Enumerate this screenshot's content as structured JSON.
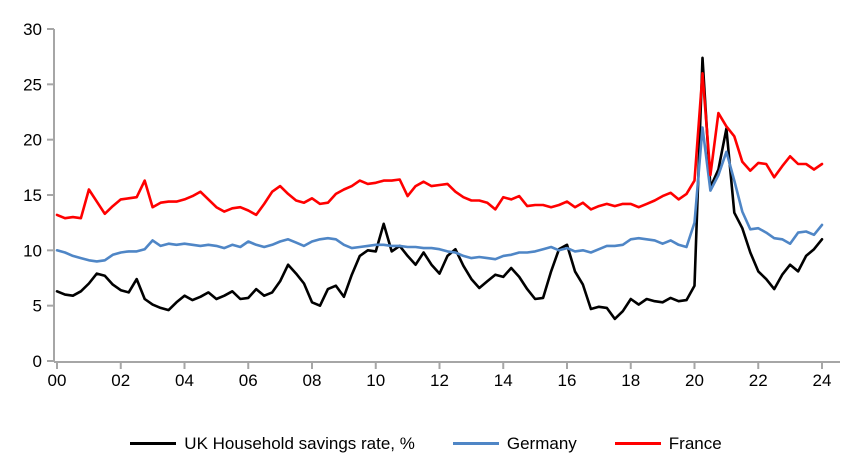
{
  "chart_data": {
    "type": "line",
    "title": "",
    "x_tick_labels": [
      "00",
      "02",
      "04",
      "06",
      "08",
      "10",
      "12",
      "14",
      "16",
      "18",
      "20",
      "22",
      "24"
    ],
    "x_start_year": 2000,
    "points_per_year": 4,
    "y_ticks": [
      0,
      5,
      10,
      15,
      20,
      25,
      30
    ],
    "ylim": [
      0,
      30
    ],
    "grid": false,
    "legend_position": "bottom",
    "axis_color": "#a6a6a6",
    "text_color": "#000000",
    "series": [
      {
        "name": "UK Household savings rate, %",
        "color": "#000000",
        "values": [
          6.3,
          6.0,
          5.9,
          6.3,
          7.0,
          7.9,
          7.7,
          6.9,
          6.4,
          6.2,
          7.4,
          5.6,
          5.1,
          4.8,
          4.6,
          5.3,
          5.9,
          5.5,
          5.8,
          6.2,
          5.6,
          5.9,
          6.3,
          5.6,
          5.7,
          6.5,
          5.9,
          6.2,
          7.2,
          8.7,
          7.9,
          7.0,
          5.3,
          5.0,
          6.5,
          6.8,
          5.8,
          7.8,
          9.5,
          10.0,
          9.9,
          12.4,
          9.9,
          10.4,
          9.5,
          8.7,
          9.8,
          8.7,
          7.9,
          9.5,
          10.1,
          8.6,
          7.4,
          6.6,
          7.2,
          7.8,
          7.6,
          8.4,
          7.6,
          6.5,
          5.6,
          5.7,
          8.1,
          10.1,
          10.5,
          8.1,
          6.9,
          4.7,
          4.9,
          4.8,
          3.8,
          4.5,
          5.6,
          5.1,
          5.6,
          5.4,
          5.3,
          5.7,
          5.4,
          5.5,
          6.8,
          27.4,
          15.7,
          17.3,
          21.0,
          13.4,
          12.0,
          9.8,
          8.1,
          7.4,
          6.5,
          7.8,
          8.7,
          8.1,
          9.5,
          10.1,
          11.0
        ]
      },
      {
        "name": "Germany",
        "color": "#4f86c6",
        "values": [
          10.0,
          9.8,
          9.5,
          9.3,
          9.1,
          9.0,
          9.1,
          9.6,
          9.8,
          9.9,
          9.9,
          10.1,
          10.9,
          10.4,
          10.6,
          10.5,
          10.6,
          10.5,
          10.4,
          10.5,
          10.4,
          10.2,
          10.5,
          10.3,
          10.8,
          10.5,
          10.3,
          10.5,
          10.8,
          11.0,
          10.7,
          10.4,
          10.8,
          11.0,
          11.1,
          11.0,
          10.5,
          10.2,
          10.3,
          10.4,
          10.5,
          10.5,
          10.4,
          10.4,
          10.3,
          10.3,
          10.2,
          10.2,
          10.1,
          9.9,
          9.8,
          9.5,
          9.3,
          9.4,
          9.3,
          9.2,
          9.5,
          9.6,
          9.8,
          9.8,
          9.9,
          10.1,
          10.3,
          10.0,
          10.2,
          9.9,
          10.0,
          9.8,
          10.1,
          10.4,
          10.4,
          10.5,
          11.0,
          11.1,
          11.0,
          10.9,
          10.6,
          10.9,
          10.5,
          10.3,
          12.5,
          21.1,
          15.4,
          16.8,
          18.9,
          16.3,
          13.5,
          11.9,
          12.0,
          11.6,
          11.1,
          11.0,
          10.6,
          11.6,
          11.7,
          11.4,
          12.3
        ]
      },
      {
        "name": "France",
        "color": "#ff0000",
        "values": [
          13.2,
          12.9,
          13.0,
          12.9,
          15.5,
          14.4,
          13.3,
          14.0,
          14.6,
          14.7,
          14.8,
          16.3,
          13.9,
          14.3,
          14.4,
          14.4,
          14.6,
          14.9,
          15.3,
          14.6,
          13.9,
          13.5,
          13.8,
          13.9,
          13.6,
          13.2,
          14.2,
          15.3,
          15.8,
          15.1,
          14.5,
          14.3,
          14.7,
          14.2,
          14.3,
          15.1,
          15.5,
          15.8,
          16.3,
          16.0,
          16.1,
          16.3,
          16.3,
          16.4,
          14.9,
          15.8,
          16.2,
          15.8,
          15.9,
          16.0,
          15.3,
          14.8,
          14.5,
          14.5,
          14.3,
          13.7,
          14.8,
          14.6,
          14.9,
          14.0,
          14.1,
          14.1,
          13.9,
          14.1,
          14.4,
          13.9,
          14.3,
          13.7,
          14.0,
          14.2,
          14.0,
          14.2,
          14.2,
          13.9,
          14.2,
          14.5,
          14.9,
          15.2,
          14.6,
          15.1,
          16.3,
          26.0,
          16.8,
          22.4,
          21.2,
          20.3,
          18.0,
          17.2,
          17.9,
          17.8,
          16.6,
          17.6,
          18.5,
          17.8,
          17.8,
          17.3,
          17.8
        ]
      }
    ]
  },
  "legend": {
    "uk_label": "UK Household savings rate, %",
    "germany_label": "Germany",
    "france_label": "France"
  }
}
